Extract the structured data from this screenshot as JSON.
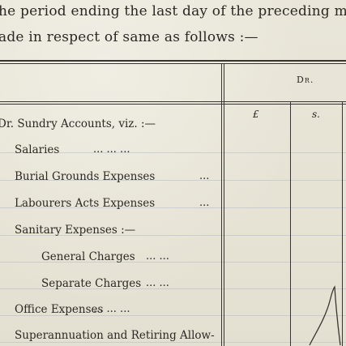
{
  "intro": {
    "line1": "he period ending the last day of the preceding mon",
    "line2": "ade in respect of same as follows :—"
  },
  "table": {
    "section_header": "Dr.",
    "columns": [
      "£",
      "s."
    ],
    "group_label": "Dr. Sundry Accounts, viz. :—",
    "rows": [
      {
        "label": "Salaries",
        "leaders": "...          ...          ..."
      },
      {
        "label": "Burial Grounds Expenses",
        "leaders": "..."
      },
      {
        "label": "Labourers Acts Expenses",
        "leaders": "..."
      },
      {
        "label": "Sanitary Expenses :—",
        "leaders": ""
      },
      {
        "label": "General Charges",
        "leaders": "...          ..."
      },
      {
        "label": "Separate Charges",
        "leaders": "...          ..."
      },
      {
        "label": "Office Expenses",
        "leaders": "...          ...          ..."
      },
      {
        "label": "Superannuation and Retiring Allow-",
        "leaders": ""
      }
    ]
  }
}
